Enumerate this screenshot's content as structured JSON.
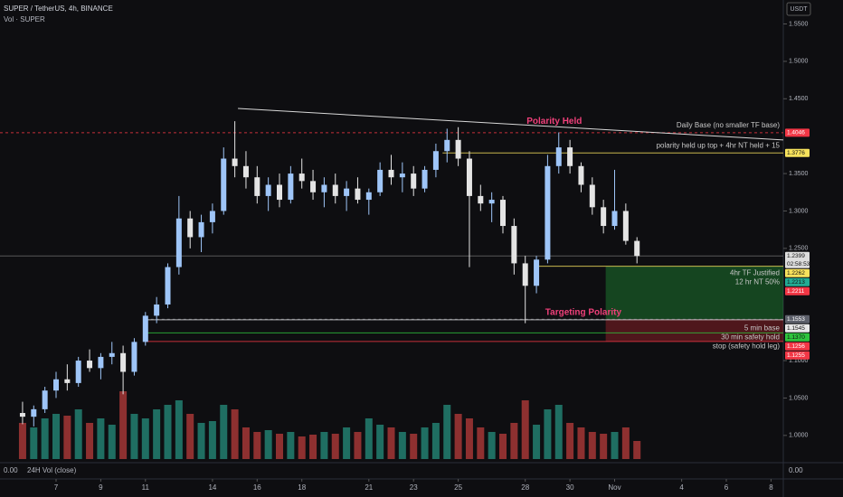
{
  "chart_data": {
    "type": "candlestick",
    "title": "SUPER / TetherUS, 4h, BINANCE",
    "subtitle": "Vol · SUPER",
    "currency": "USDT",
    "x": [
      5.5,
      6,
      6.5,
      7,
      7.5,
      8,
      8.5,
      9,
      9.5,
      10,
      10.5,
      11,
      11.5,
      12,
      12.5,
      13,
      13.5,
      14,
      14.5,
      15,
      15.5,
      16,
      16.5,
      17,
      17.5,
      18,
      18.5,
      19,
      19.5,
      20,
      20.5,
      21,
      21.5,
      22,
      22.5,
      23,
      23.5,
      24,
      24.5,
      25,
      25.5,
      26,
      26.5,
      27,
      27.5,
      28,
      28.5,
      29,
      29.5,
      30,
      30.5,
      31,
      31.5,
      32,
      32.5,
      33
    ],
    "open": [
      1.03,
      1.025,
      1.035,
      1.06,
      1.075,
      1.07,
      1.1,
      1.09,
      1.105,
      1.11,
      1.085,
      1.125,
      1.16,
      1.175,
      1.225,
      1.29,
      1.265,
      1.285,
      1.3,
      1.37,
      1.36,
      1.345,
      1.32,
      1.335,
      1.315,
      1.35,
      1.34,
      1.325,
      1.335,
      1.32,
      1.33,
      1.315,
      1.325,
      1.355,
      1.345,
      1.35,
      1.33,
      1.355,
      1.38,
      1.395,
      1.37,
      1.32,
      1.31,
      1.315,
      1.28,
      1.23,
      1.2,
      1.235,
      1.36,
      1.385,
      1.36,
      1.335,
      1.305,
      1.28,
      1.3,
      1.26
    ],
    "high": [
      1.045,
      1.04,
      1.065,
      1.085,
      1.095,
      1.105,
      1.115,
      1.11,
      1.125,
      1.12,
      1.13,
      1.165,
      1.185,
      1.23,
      1.32,
      1.3,
      1.295,
      1.31,
      1.385,
      1.42,
      1.38,
      1.36,
      1.345,
      1.35,
      1.36,
      1.37,
      1.355,
      1.345,
      1.35,
      1.34,
      1.345,
      1.33,
      1.365,
      1.375,
      1.365,
      1.36,
      1.36,
      1.39,
      1.41,
      1.412,
      1.38,
      1.335,
      1.325,
      1.32,
      1.29,
      1.24,
      1.24,
      1.375,
      1.405,
      1.395,
      1.365,
      1.345,
      1.315,
      1.355,
      1.31,
      1.265
    ],
    "low": [
      1.015,
      1.012,
      1.03,
      1.05,
      1.06,
      1.065,
      1.085,
      1.075,
      1.095,
      1.055,
      1.08,
      1.12,
      1.15,
      1.17,
      1.215,
      1.25,
      1.245,
      1.27,
      1.295,
      1.345,
      1.33,
      1.31,
      1.3,
      1.305,
      1.31,
      1.33,
      1.315,
      1.305,
      1.31,
      1.3,
      1.31,
      1.295,
      1.32,
      1.335,
      1.325,
      1.32,
      1.325,
      1.345,
      1.365,
      1.36,
      1.225,
      1.3,
      1.285,
      1.27,
      1.215,
      1.15,
      1.19,
      1.23,
      1.35,
      1.35,
      1.325,
      1.295,
      1.27,
      1.275,
      1.255,
      1.23
    ],
    "close": [
      1.025,
      1.035,
      1.06,
      1.075,
      1.07,
      1.1,
      1.09,
      1.105,
      1.11,
      1.085,
      1.125,
      1.16,
      1.175,
      1.225,
      1.29,
      1.265,
      1.285,
      1.3,
      1.37,
      1.36,
      1.345,
      1.32,
      1.335,
      1.315,
      1.35,
      1.34,
      1.325,
      1.335,
      1.32,
      1.33,
      1.315,
      1.325,
      1.355,
      1.345,
      1.35,
      1.33,
      1.355,
      1.38,
      1.395,
      1.37,
      1.32,
      1.31,
      1.315,
      1.28,
      1.23,
      1.2,
      1.235,
      1.36,
      1.385,
      1.36,
      1.335,
      1.305,
      1.28,
      1.3,
      1.26,
      1.2399
    ],
    "volume": [
      40,
      35,
      45,
      50,
      48,
      55,
      40,
      45,
      38,
      75,
      50,
      45,
      55,
      60,
      65,
      50,
      40,
      42,
      60,
      55,
      35,
      30,
      32,
      28,
      30,
      25,
      27,
      30,
      28,
      35,
      30,
      45,
      38,
      35,
      30,
      28,
      35,
      40,
      60,
      50,
      45,
      35,
      30,
      28,
      40,
      65,
      38,
      55,
      60,
      40,
      35,
      30,
      28,
      30,
      35,
      20
    ],
    "up_color": "#9ec5f8",
    "down_color": "#e4e4e4",
    "volume_up_color": "#1f6e62",
    "volume_down_color": "#8e3030",
    "xlim": [
      4.49,
      39.55
    ],
    "ylim": [
      0.966,
      1.582
    ],
    "xticks": [
      7,
      9,
      11,
      14,
      16,
      18,
      21,
      23,
      25,
      28,
      30,
      {
        "value": 32,
        "label": "Nov"
      },
      {
        "value": 35,
        "label": "4"
      },
      {
        "value": 37,
        "label": "6"
      },
      {
        "value": 39,
        "label": "8"
      }
    ],
    "yticks": [
      {
        "value": 1.55,
        "label": "1.5500"
      },
      {
        "value": 1.5,
        "label": "1.5000"
      },
      {
        "value": 1.45,
        "label": "1.4500"
      },
      {
        "value": 1.35,
        "label": "1.3500"
      },
      {
        "value": 1.3,
        "label": "1.3000"
      },
      {
        "value": 1.25,
        "label": "1.2500"
      },
      {
        "value": 1.1,
        "label": "1.1000"
      },
      {
        "value": 1.05,
        "label": "1.0500"
      },
      {
        "value": 1.0,
        "label": "1.0000"
      }
    ],
    "levels": [
      {
        "value": 1.4046,
        "label": "1.4046",
        "color": "#f23645",
        "note": "Daily Base (no smaller TF base)",
        "from": 4.49,
        "dashed": true
      },
      {
        "value": 1.3776,
        "label": "1.3776",
        "color": "#f7e25c",
        "note": "polarity held up top + 4hr NT held + 15",
        "from": 24.3
      },
      {
        "value": 1.2399,
        "label": "1.2399",
        "timer": "02:58:53",
        "color": "#dddddd",
        "from": 4.49
      },
      {
        "value": 1.2262,
        "label": "1.2262",
        "color": "#f7e25c",
        "note": "4hr TF Justified",
        "from": 28.6
      },
      {
        "value": 1.2213,
        "label": "1.2213",
        "color": "#22ab94",
        "note": "12 hr NT 50%"
      },
      {
        "value": 1.2211,
        "label": "1.2211",
        "color": "#f23645"
      },
      {
        "value": 1.1553,
        "label": "1.1553",
        "color": "#5d606b",
        "from": 11,
        "dashed": true
      },
      {
        "value": 1.1545,
        "label": "1.1545",
        "color": "#e8e8e8",
        "note": "5 min base",
        "from": 11
      },
      {
        "value": 1.137,
        "label": "1.1370",
        "color": "#2ec43d",
        "note": "30 min safety hold",
        "from": 11
      },
      {
        "value": 1.1256,
        "label": "1.1256",
        "color": "#f23645",
        "note": "stop (safety hold leg)",
        "from": 11
      },
      {
        "value": 1.1255,
        "label": "1.1255",
        "color": "#f23645"
      }
    ],
    "trendline": {
      "x": [
        15.14,
        39.55
      ],
      "y": [
        1.437,
        1.395
      ],
      "color": "#d8d8d8"
    },
    "annotations": [
      {
        "text": "Polarity Held",
        "x": 29.3,
        "y": 1.42,
        "color": "#f0407a"
      },
      {
        "text": "Targeting Polarity",
        "x": 30.6,
        "y": 1.164,
        "color": "#f0407a"
      }
    ],
    "position": {
      "from": 31.6,
      "target": 1.2262,
      "entry": 1.1553,
      "stop": 1.1256
    },
    "vol_pane": {
      "name": "24H Vol (close)",
      "value": "0.00"
    }
  }
}
